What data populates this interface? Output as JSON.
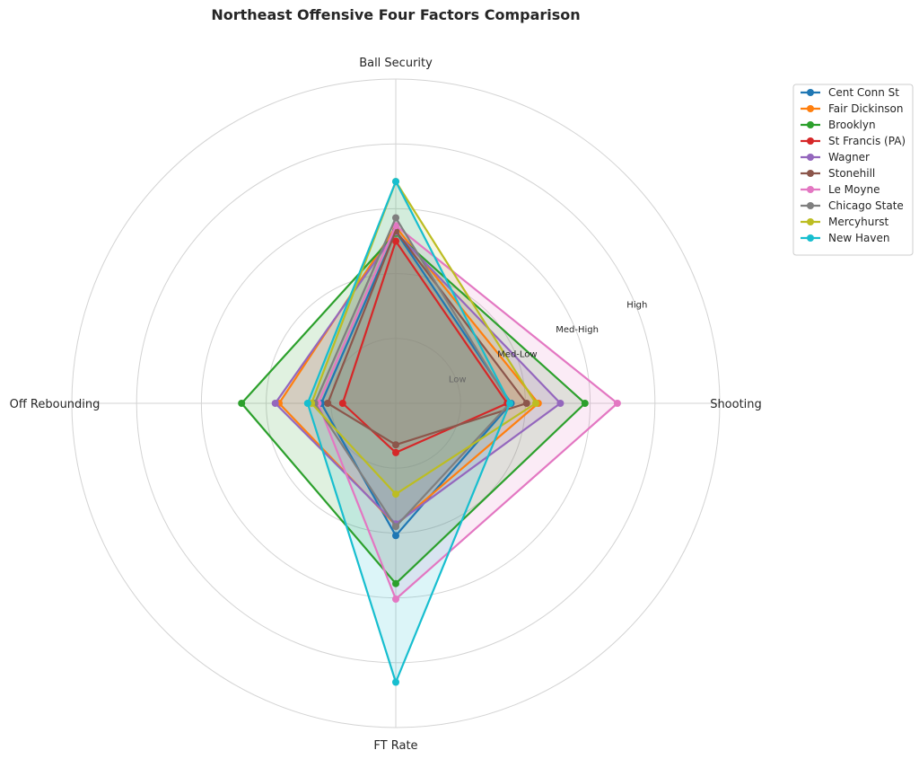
{
  "chart_data": {
    "type": "radar",
    "title": "Northeast Offensive Four Factors Comparison",
    "axes": [
      "Ball Security",
      "Shooting",
      "FT Rate",
      "Off Rebounding"
    ],
    "ring_labels": [
      "Low",
      "Med-Low",
      "Med-High",
      "High"
    ],
    "ring_levels": [
      1,
      2,
      3,
      4,
      5
    ],
    "rlim": [
      0,
      5
    ],
    "grid": true,
    "legend_position": "right",
    "series": [
      {
        "name": "Cent Conn St",
        "color": "#1f77b4",
        "values": [
          2.65,
          1.78,
          2.04,
          1.15
        ]
      },
      {
        "name": "Fair Dickinson",
        "color": "#ff7f0e",
        "values": [
          2.72,
          2.2,
          1.88,
          1.8
        ]
      },
      {
        "name": "Brooklyn",
        "color": "#2ca02c",
        "values": [
          2.62,
          2.92,
          2.78,
          2.38
        ]
      },
      {
        "name": "St Francis (PA)",
        "color": "#d62728",
        "values": [
          2.5,
          1.72,
          0.76,
          0.82
        ]
      },
      {
        "name": "Wagner",
        "color": "#9467bd",
        "values": [
          2.64,
          2.54,
          1.86,
          1.86
        ]
      },
      {
        "name": "Stonehill",
        "color": "#8c564b",
        "values": [
          2.66,
          2.02,
          0.64,
          1.05
        ]
      },
      {
        "name": "Le Moyne",
        "color": "#e377c2",
        "values": [
          2.74,
          3.42,
          3.02,
          1.2
        ]
      },
      {
        "name": "Chicago State",
        "color": "#7f7f7f",
        "values": [
          2.86,
          1.76,
          1.9,
          1.25
        ]
      },
      {
        "name": "Mercyhurst",
        "color": "#bcbd22",
        "values": [
          3.42,
          2.16,
          1.4,
          1.3
        ]
      },
      {
        "name": "New Haven",
        "color": "#17becf",
        "values": [
          3.42,
          1.76,
          4.3,
          1.36
        ]
      }
    ]
  }
}
